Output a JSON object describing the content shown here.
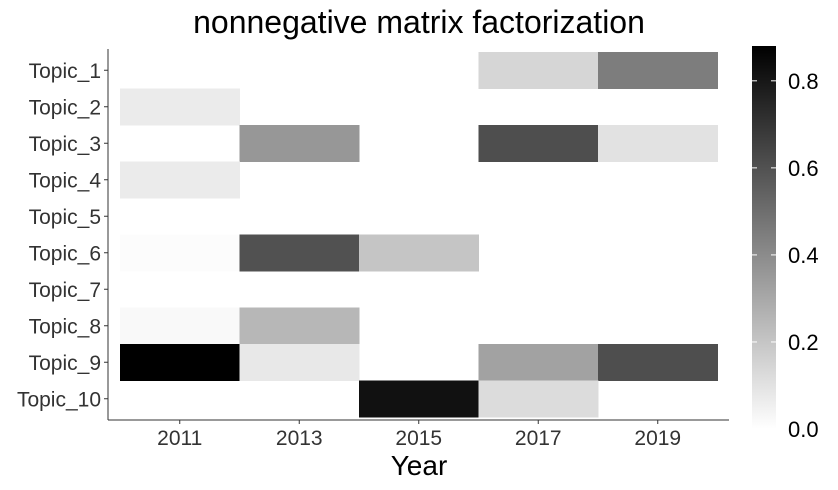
{
  "chart_data": {
    "type": "heatmap",
    "title": "nonnegative matrix factorization",
    "xlabel": "Year",
    "ylabel": "",
    "x_years": [
      2011,
      2013,
      2015,
      2017,
      2019
    ],
    "x_tick_labels": [
      "2011",
      "2013",
      "2015",
      "2017",
      "2019"
    ],
    "x_range": [
      2010,
      2020
    ],
    "topics": [
      "Topic_1",
      "Topic_2",
      "Topic_3",
      "Topic_4",
      "Topic_5",
      "Topic_6",
      "Topic_7",
      "Topic_8",
      "Topic_9",
      "Topic_10"
    ],
    "values": [
      [
        0,
        0,
        0,
        0.14,
        0.45
      ],
      [
        0.07,
        0,
        0,
        0,
        0
      ],
      [
        0,
        0.36,
        0,
        0.61,
        0.1
      ],
      [
        0.07,
        0,
        0,
        0,
        0
      ],
      [
        0,
        0,
        0,
        0,
        0
      ],
      [
        0.01,
        0.6,
        0.2,
        0,
        0
      ],
      [
        0,
        0,
        0,
        0,
        0
      ],
      [
        0.02,
        0.25,
        0,
        0,
        0
      ],
      [
        0.88,
        0.08,
        0,
        0.32,
        0.61
      ],
      [
        0,
        0,
        0.82,
        0.12,
        0
      ]
    ],
    "colorbar": {
      "range": [
        0,
        0.88
      ],
      "ticks": [
        0.0,
        0.2,
        0.4,
        0.6,
        0.8
      ],
      "tick_labels": [
        "0.0",
        "0.2",
        "0.4",
        "0.6",
        "0.8"
      ],
      "low_color": "#ffffff",
      "high_color": "#000000"
    },
    "grid": false,
    "legend_position": "right"
  }
}
